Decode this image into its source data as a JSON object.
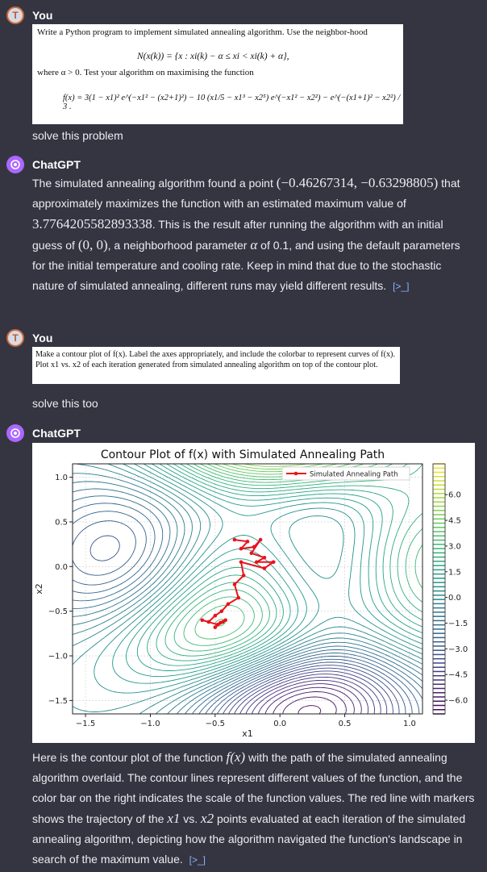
{
  "msg1": {
    "sender": "You",
    "avatar_letter": "T",
    "problem_text": "Write a Python program to implement simulated annealing algorithm. Use the neighbor-hood",
    "neighborhood": "N(x(k)) = {x : xi(k) − α ≤ xi < xi(k) + α},",
    "alpha_note": "where α > 0. Test your algorithm on maximising the function",
    "function_text": "f(x) = 3(1 − x1)² e^(−x1² − (x2+1)²) − 10 (x1/5 − x1³ − x2⁵) e^(−x1² − x2²) − e^(−(x1+1)² − x2²) / 3 .",
    "caption": "solve this problem"
  },
  "msg2": {
    "sender": "ChatGPT",
    "text_a": "The simulated annealing algorithm found a point ",
    "point": "(−0.46267314, −0.63298805)",
    "text_b": "that approximately maximizes the function with an estimated maximum value of",
    "max_value": "3.7764205582893338",
    "text_c": ". This is the result after running the algorithm with an initial guess of ",
    "guess": "(0, 0)",
    "text_d": ", a neighborhood parameter ",
    "alpha_sym": "α",
    "text_e": " of 0.1, and using the default parameters for the initial temperature and cooling rate. Keep in mind that due to the stochastic nature of simulated annealing, different runs may yield different results.",
    "link_icon": "[>_]"
  },
  "msg3": {
    "sender": "You",
    "avatar_letter": "T",
    "task_text": "Make a contour plot of f(x). Label the axes appropriately, and include the colorbar to represent curves of f(x). Plot x1 vs. x2 of each iteration generated from simulated annealing algorithm on top of the contour plot.",
    "caption": "solve this too"
  },
  "msg4": {
    "sender": "ChatGPT",
    "text_a": "Here is the contour plot of the function ",
    "fx": "f(x)",
    "text_b": " with the path of the simulated annealing algorithm overlaid. The contour lines represent different values of the function, and the color bar on the right indicates the scale of the function values. The red line with markers shows the trajectory of the ",
    "x1": "x1",
    "text_c": " vs. ",
    "x2": "x2",
    "text_d": " points evaluated at each iteration of the simulated annealing algorithm, depicting how the algorithm navigated the function's landscape in search of the maximum value.",
    "link_icon": "[>_]"
  },
  "chart_data": {
    "type": "contour",
    "title": "Contour Plot of f(x) with Simulated Annealing Path",
    "xlabel": "x1",
    "ylabel": "x2",
    "xlim": [
      -1.6,
      1.1
    ],
    "ylim": [
      -1.65,
      1.15
    ],
    "x_ticks": [
      "-1.5",
      "-1.0",
      "-0.5",
      "0.0",
      "0.5",
      "1.0"
    ],
    "y_ticks": [
      "1.0",
      "0.5",
      "0.0",
      "-0.5",
      "-1.0",
      "-1.5"
    ],
    "colorbar_ticks": [
      "6.0",
      "4.5",
      "3.0",
      "1.5",
      "0.0",
      "-1.5",
      "-3.0",
      "-4.5",
      "-6.0"
    ],
    "legend": "Simulated Annealing Path",
    "legend_position": "top-right",
    "path_color": "#e8131b",
    "path": [
      [
        -0.35,
        0.3
      ],
      [
        -0.25,
        0.28
      ],
      [
        -0.3,
        0.2
      ],
      [
        -0.2,
        0.22
      ],
      [
        -0.15,
        0.3
      ],
      [
        -0.22,
        0.15
      ],
      [
        -0.12,
        0.1
      ],
      [
        -0.18,
        0.05
      ],
      [
        -0.05,
        0.05
      ],
      [
        -0.12,
        -0.02
      ],
      [
        -0.3,
        0.05
      ],
      [
        -0.28,
        -0.1
      ],
      [
        -0.35,
        -0.2
      ],
      [
        -0.32,
        -0.35
      ],
      [
        -0.4,
        -0.42
      ],
      [
        -0.45,
        -0.5
      ],
      [
        -0.5,
        -0.55
      ],
      [
        -0.55,
        -0.62
      ],
      [
        -0.6,
        -0.6
      ],
      [
        -0.48,
        -0.65
      ],
      [
        -0.42,
        -0.6
      ],
      [
        -0.5,
        -0.68
      ],
      [
        -0.44,
        -0.62
      ],
      [
        -0.46,
        -0.63
      ]
    ]
  }
}
